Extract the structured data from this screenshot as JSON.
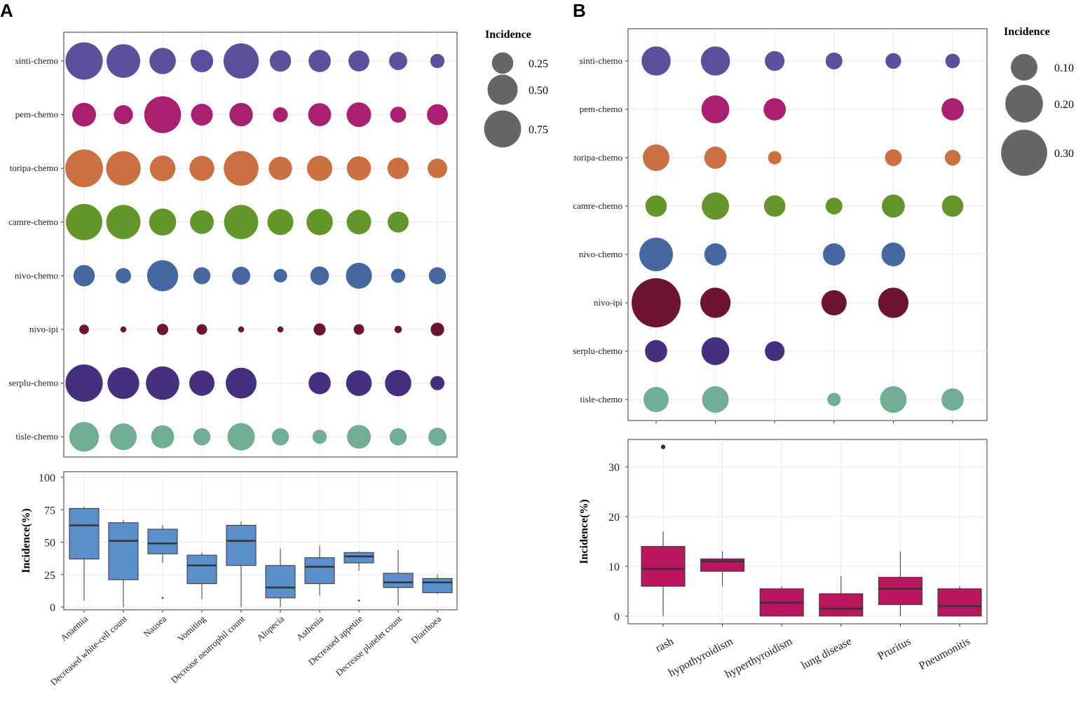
{
  "labels": {
    "panel_a": "A",
    "panel_b": "B"
  },
  "chart_data": [
    {
      "id": "a-bubble",
      "type": "scatter",
      "title": "",
      "legend_title": "Incidence",
      "legend_values": [
        "0.25",
        "0.50",
        "0.75"
      ],
      "legend_sizes": [
        0.25,
        0.5,
        0.75
      ],
      "rows": [
        "sinti-chemo",
        "pem-chemo",
        "toripa-chemo",
        "camre-chemo",
        "nivo-chemo",
        "nivo-ipi",
        "serplu-chemo",
        "tisle-chemo"
      ],
      "columns": [
        "Anaemia",
        "Decreased white-cell count",
        "Nausea",
        "Vomiting",
        "Decrease neutrophil count",
        "Alopecia",
        "Asthenia",
        "Decreased appetite",
        "Decrease platelet count",
        "Diarrhoea"
      ],
      "colors": [
        "#5c509c",
        "#aa2070",
        "#cb7041",
        "#64952b",
        "#4568a0",
        "#6d1433",
        "#45307f",
        "#6fae92"
      ],
      "values": [
        [
          0.76,
          0.62,
          0.38,
          0.28,
          0.68,
          0.25,
          0.27,
          0.24,
          0.18,
          0.11
        ],
        [
          0.31,
          0.2,
          0.74,
          0.26,
          0.3,
          0.12,
          0.29,
          0.33,
          0.14,
          0.24
        ],
        [
          0.78,
          0.65,
          0.36,
          0.34,
          0.66,
          0.3,
          0.35,
          0.32,
          0.25,
          0.21
        ],
        [
          0.72,
          0.64,
          0.4,
          0.31,
          0.64,
          0.37,
          0.38,
          0.33,
          0.24,
          null
        ],
        [
          0.25,
          0.13,
          0.53,
          0.16,
          0.18,
          0.1,
          0.19,
          0.37,
          0.11,
          0.16
        ],
        [
          0.05,
          0.02,
          0.07,
          0.06,
          0.02,
          0.02,
          0.08,
          0.06,
          0.03,
          0.1
        ],
        [
          0.76,
          0.55,
          0.61,
          0.35,
          0.52,
          null,
          0.27,
          0.36,
          0.38,
          0.11
        ],
        [
          0.48,
          0.39,
          0.29,
          0.16,
          0.41,
          0.16,
          0.11,
          0.31,
          0.16,
          0.18
        ]
      ]
    },
    {
      "id": "a-box",
      "type": "box",
      "title": "",
      "ylabel": "Incidence(%)",
      "xlabel": "",
      "ylim": [
        0,
        100
      ],
      "yticks": [
        "0",
        "25",
        "50",
        "75",
        "100"
      ],
      "ytick_values": [
        0,
        25,
        50,
        75,
        100
      ],
      "categories": [
        "Anaemia",
        "Decreased white-cell count",
        "Nausea",
        "Vomiting",
        "Decrease neutrophil count",
        "Alopecia",
        "Asthenia",
        "Decreased appetite",
        "Decrease platelet count",
        "Diarrhoea"
      ],
      "color": "#5b90cc",
      "boxes": [
        {
          "min": 5,
          "q1": 37,
          "median": 63,
          "q3": 76,
          "max": 77
        },
        {
          "min": 0,
          "q1": 21,
          "median": 51,
          "q3": 65,
          "max": 67
        },
        {
          "min": 34,
          "q1": 41,
          "median": 49,
          "q3": 60,
          "max": 63,
          "outliers": [
            7
          ]
        },
        {
          "min": 6,
          "q1": 18,
          "median": 32,
          "q3": 40,
          "max": 42
        },
        {
          "min": 0,
          "q1": 32,
          "median": 51,
          "q3": 63,
          "max": 66
        },
        {
          "min": 0,
          "q1": 7,
          "median": 15,
          "q3": 32,
          "max": 45
        },
        {
          "min": 9,
          "q1": 18,
          "median": 31,
          "q3": 38,
          "max": 47
        },
        {
          "min": 28,
          "q1": 34,
          "median": 39,
          "q3": 42,
          "max": 43,
          "outliers": [
            5
          ]
        },
        {
          "min": 1,
          "q1": 15,
          "median": 19,
          "q3": 26,
          "max": 44
        },
        {
          "min": 10,
          "q1": 11,
          "median": 19,
          "q3": 22,
          "max": 25
        }
      ]
    },
    {
      "id": "b-bubble",
      "type": "scatter",
      "title": "",
      "legend_title": "Incidence",
      "legend_values": [
        "0.10",
        "0.20",
        "0.30"
      ],
      "legend_sizes": [
        0.1,
        0.2,
        0.3
      ],
      "rows": [
        "sinti-chemo",
        "pem-chemo",
        "toripa-chemo",
        "camre-chemo",
        "nivo-chemo",
        "nivo-ipi",
        "serplu-chemo",
        "tisle-chemo"
      ],
      "columns": [
        "rash",
        "hypothyroidism",
        "hyperthyroidism",
        "lung disease",
        "Pruritus",
        "Pneumonitis"
      ],
      "colors": [
        "#5c509c",
        "#aa2070",
        "#cb7041",
        "#64952b",
        "#4568a0",
        "#6d1433",
        "#45307f",
        "#6fae92"
      ],
      "values": [
        [
          0.12,
          0.12,
          0.055,
          0.04,
          0.035,
          0.03
        ],
        [
          null,
          0.11,
          0.07,
          null,
          null,
          0.07
        ],
        [
          0.1,
          0.07,
          0.025,
          null,
          0.04,
          0.035
        ],
        [
          0.065,
          0.105,
          0.065,
          0.04,
          0.075,
          0.065
        ],
        [
          0.16,
          0.07,
          null,
          0.07,
          0.08,
          null
        ],
        [
          0.34,
          0.13,
          null,
          0.09,
          0.13,
          null
        ],
        [
          0.07,
          0.11,
          0.055,
          null,
          null,
          null
        ],
        [
          0.09,
          0.1,
          null,
          0.025,
          0.1,
          0.07
        ]
      ]
    },
    {
      "id": "b-box",
      "type": "box",
      "title": "",
      "ylabel": "Incidence(%)",
      "xlabel": "",
      "ylim": [
        -1,
        35
      ],
      "yticks": [
        "0",
        "10",
        "20",
        "30"
      ],
      "ytick_values": [
        0,
        10,
        20,
        30
      ],
      "categories": [
        "rash",
        "hypothyroidism",
        "hyperthyroidism",
        "lung disease",
        "Pruritus",
        "Pneumonitis"
      ],
      "color": "#b8165f",
      "boxes": [
        {
          "min": 0,
          "q1": 6,
          "median": 9.5,
          "q3": 14,
          "max": 17,
          "outliers": [
            34
          ]
        },
        {
          "min": 6,
          "q1": 9,
          "median": 11,
          "q3": 11.5,
          "max": 13
        },
        {
          "min": 0,
          "q1": 0,
          "median": 2.7,
          "q3": 5.5,
          "max": 6
        },
        {
          "min": 0,
          "q1": 0,
          "median": 1.5,
          "q3": 4.5,
          "max": 8
        },
        {
          "min": 0,
          "q1": 2.3,
          "median": 5.5,
          "q3": 7.8,
          "max": 13
        },
        {
          "min": 0,
          "q1": 0,
          "median": 2,
          "q3": 5.5,
          "max": 6
        }
      ]
    }
  ]
}
